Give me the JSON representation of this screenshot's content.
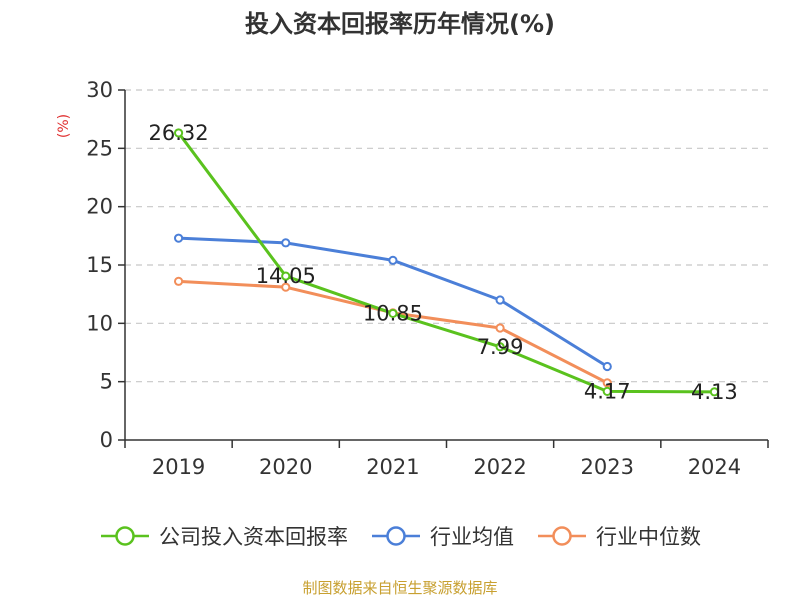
{
  "colors": {
    "company": "#5ac21e",
    "industry_avg": "#4b7fd8",
    "industry_median": "#f28e5a",
    "grid": "#c8c8c8",
    "axis": "#333333",
    "ylabel": "#e03030",
    "source": "#c8a030"
  },
  "chart_data": {
    "type": "line",
    "title": "投入资本回报率历年情况(%)",
    "ylabel": "(%)",
    "xlabel": "",
    "categories": [
      "2019",
      "2020",
      "2021",
      "2022",
      "2023",
      "2024"
    ],
    "ylim": [
      0,
      30
    ],
    "yticks": [
      0,
      5,
      10,
      15,
      20,
      25,
      30
    ],
    "grid": true,
    "legend_position": "bottom",
    "series": [
      {
        "name": "公司投入资本回报率",
        "values": [
          26.32,
          14.05,
          10.85,
          7.99,
          4.17,
          4.13
        ],
        "labels": [
          "26.32",
          "14.05",
          "10.85",
          "7.99",
          "4.17",
          "4.13"
        ]
      },
      {
        "name": "行业均值",
        "values": [
          17.3,
          16.9,
          15.4,
          12.0,
          6.3,
          null
        ]
      },
      {
        "name": "行业中位数",
        "values": [
          13.6,
          13.1,
          10.9,
          9.6,
          4.9,
          null
        ]
      }
    ]
  },
  "source_text": "制图数据来自恒生聚源数据库"
}
